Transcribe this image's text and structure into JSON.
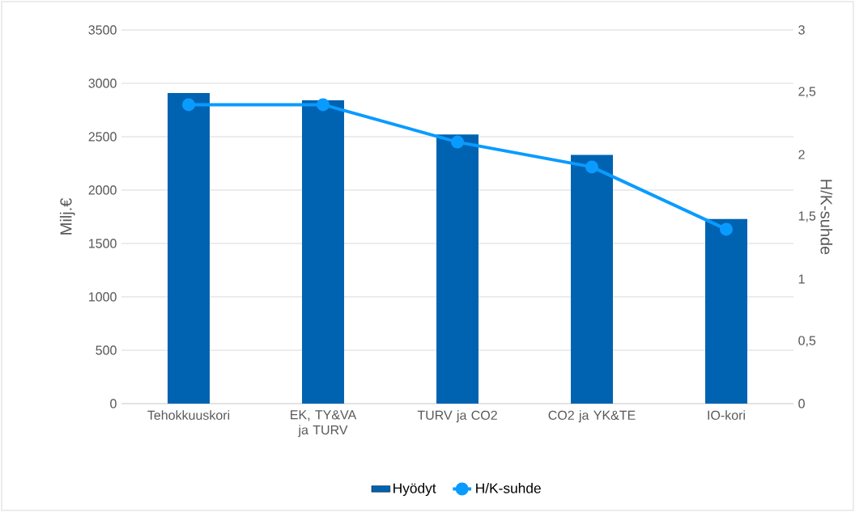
{
  "chart_data": {
    "type": "bar",
    "categories": [
      "Tehokkuuskori",
      "EK, TY&VA ja TURV",
      "TURV ja CO2",
      "CO2 ja YK&TE",
      "IO-kori"
    ],
    "series": [
      {
        "name": "Hyödyt",
        "color": "#0063b1",
        "values": [
          2910,
          2840,
          2520,
          2330,
          1730
        ]
      },
      {
        "name": "H/K-suhde",
        "type": "line",
        "axis": "y2",
        "color": "#0a9bff",
        "values": [
          2.4,
          2.4,
          2.1,
          1.9,
          1.4
        ]
      }
    ],
    "ylabel": "Milj.€",
    "y2label": "H/K-suhde",
    "ylim": [
      0,
      3500
    ],
    "yticks": [
      0,
      500,
      1000,
      1500,
      2000,
      2500,
      3000,
      3500
    ],
    "y2lim": [
      0,
      3
    ],
    "y2ticks": [
      0,
      {
        "value": 0.5,
        "label": "0,5"
      },
      1,
      {
        "value": 1.5,
        "label": "1,5"
      },
      2,
      {
        "value": 2.5,
        "label": "2,5"
      },
      3
    ],
    "grid": "y",
    "legend": "bottom",
    "marker": "circle"
  }
}
